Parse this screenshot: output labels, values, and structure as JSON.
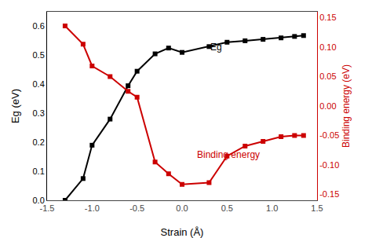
{
  "chart_data": {
    "type": "line",
    "x_label": "Strain (Å)",
    "y_label": "Eg (eV)",
    "y2_label": "Binding energy (eV)",
    "x": [
      -1.3,
      -1.1,
      -1.0,
      -0.8,
      -0.6,
      -0.5,
      -0.3,
      -0.15,
      0.0,
      0.3,
      0.5,
      0.7,
      0.9,
      1.1,
      1.25,
      1.35
    ],
    "series": [
      {
        "color": "#000000",
        "marker": "square",
        "line_style": "solid",
        "values": [
          0.0,
          0.075,
          0.19,
          0.28,
          0.395,
          0.445,
          0.505,
          0.525,
          0.51,
          0.53,
          0.545,
          0.55,
          0.555,
          0.56,
          0.565,
          0.568
        ]
      },
      {
        "color": "#cc0000",
        "marker": "square",
        "line_style": "solid",
        "axis": "y2",
        "values": [
          0.136,
          0.105,
          0.068,
          0.05,
          0.025,
          0.015,
          -0.095,
          -0.115,
          -0.133,
          -0.13,
          -0.085,
          -0.068,
          -0.06,
          -0.052,
          -0.05,
          -0.05
        ]
      }
    ],
    "annotations": [
      {
        "text": "Eg",
        "x": 0.3,
        "y": 0.505,
        "color": "#000000"
      },
      {
        "text": "Binding energy",
        "x": 0.15,
        "y": -0.095,
        "axis": "y2",
        "color": "#cc0000"
      }
    ],
    "xlim": [
      -1.5,
      1.5
    ],
    "xticks": [
      {
        "value": -1.5,
        "label": "-1.5"
      },
      {
        "value": -1.0,
        "label": "-1.0"
      },
      {
        "value": -0.5,
        "label": "-0.5"
      },
      {
        "value": 0.0,
        "label": "0.0"
      },
      {
        "value": 0.5,
        "label": "0.5"
      },
      {
        "value": 1.0,
        "label": "1.0"
      },
      {
        "value": 1.5,
        "label": "1.5"
      }
    ],
    "ylim": [
      0.0,
      0.65
    ],
    "yticks": [
      {
        "value": 0.0,
        "label": "0.0"
      },
      0.1,
      0.2,
      0.3,
      0.4,
      0.5,
      0.6
    ],
    "y2lim": [
      -0.16,
      0.16
    ],
    "y2ticks": [
      -0.15,
      {
        "value": -0.1,
        "label": "-0.10"
      },
      -0.05,
      {
        "value": 0.0,
        "label": "0.00"
      },
      0.05,
      {
        "value": 0.1,
        "label": "0.10"
      },
      0.15
    ],
    "grid": false
  }
}
